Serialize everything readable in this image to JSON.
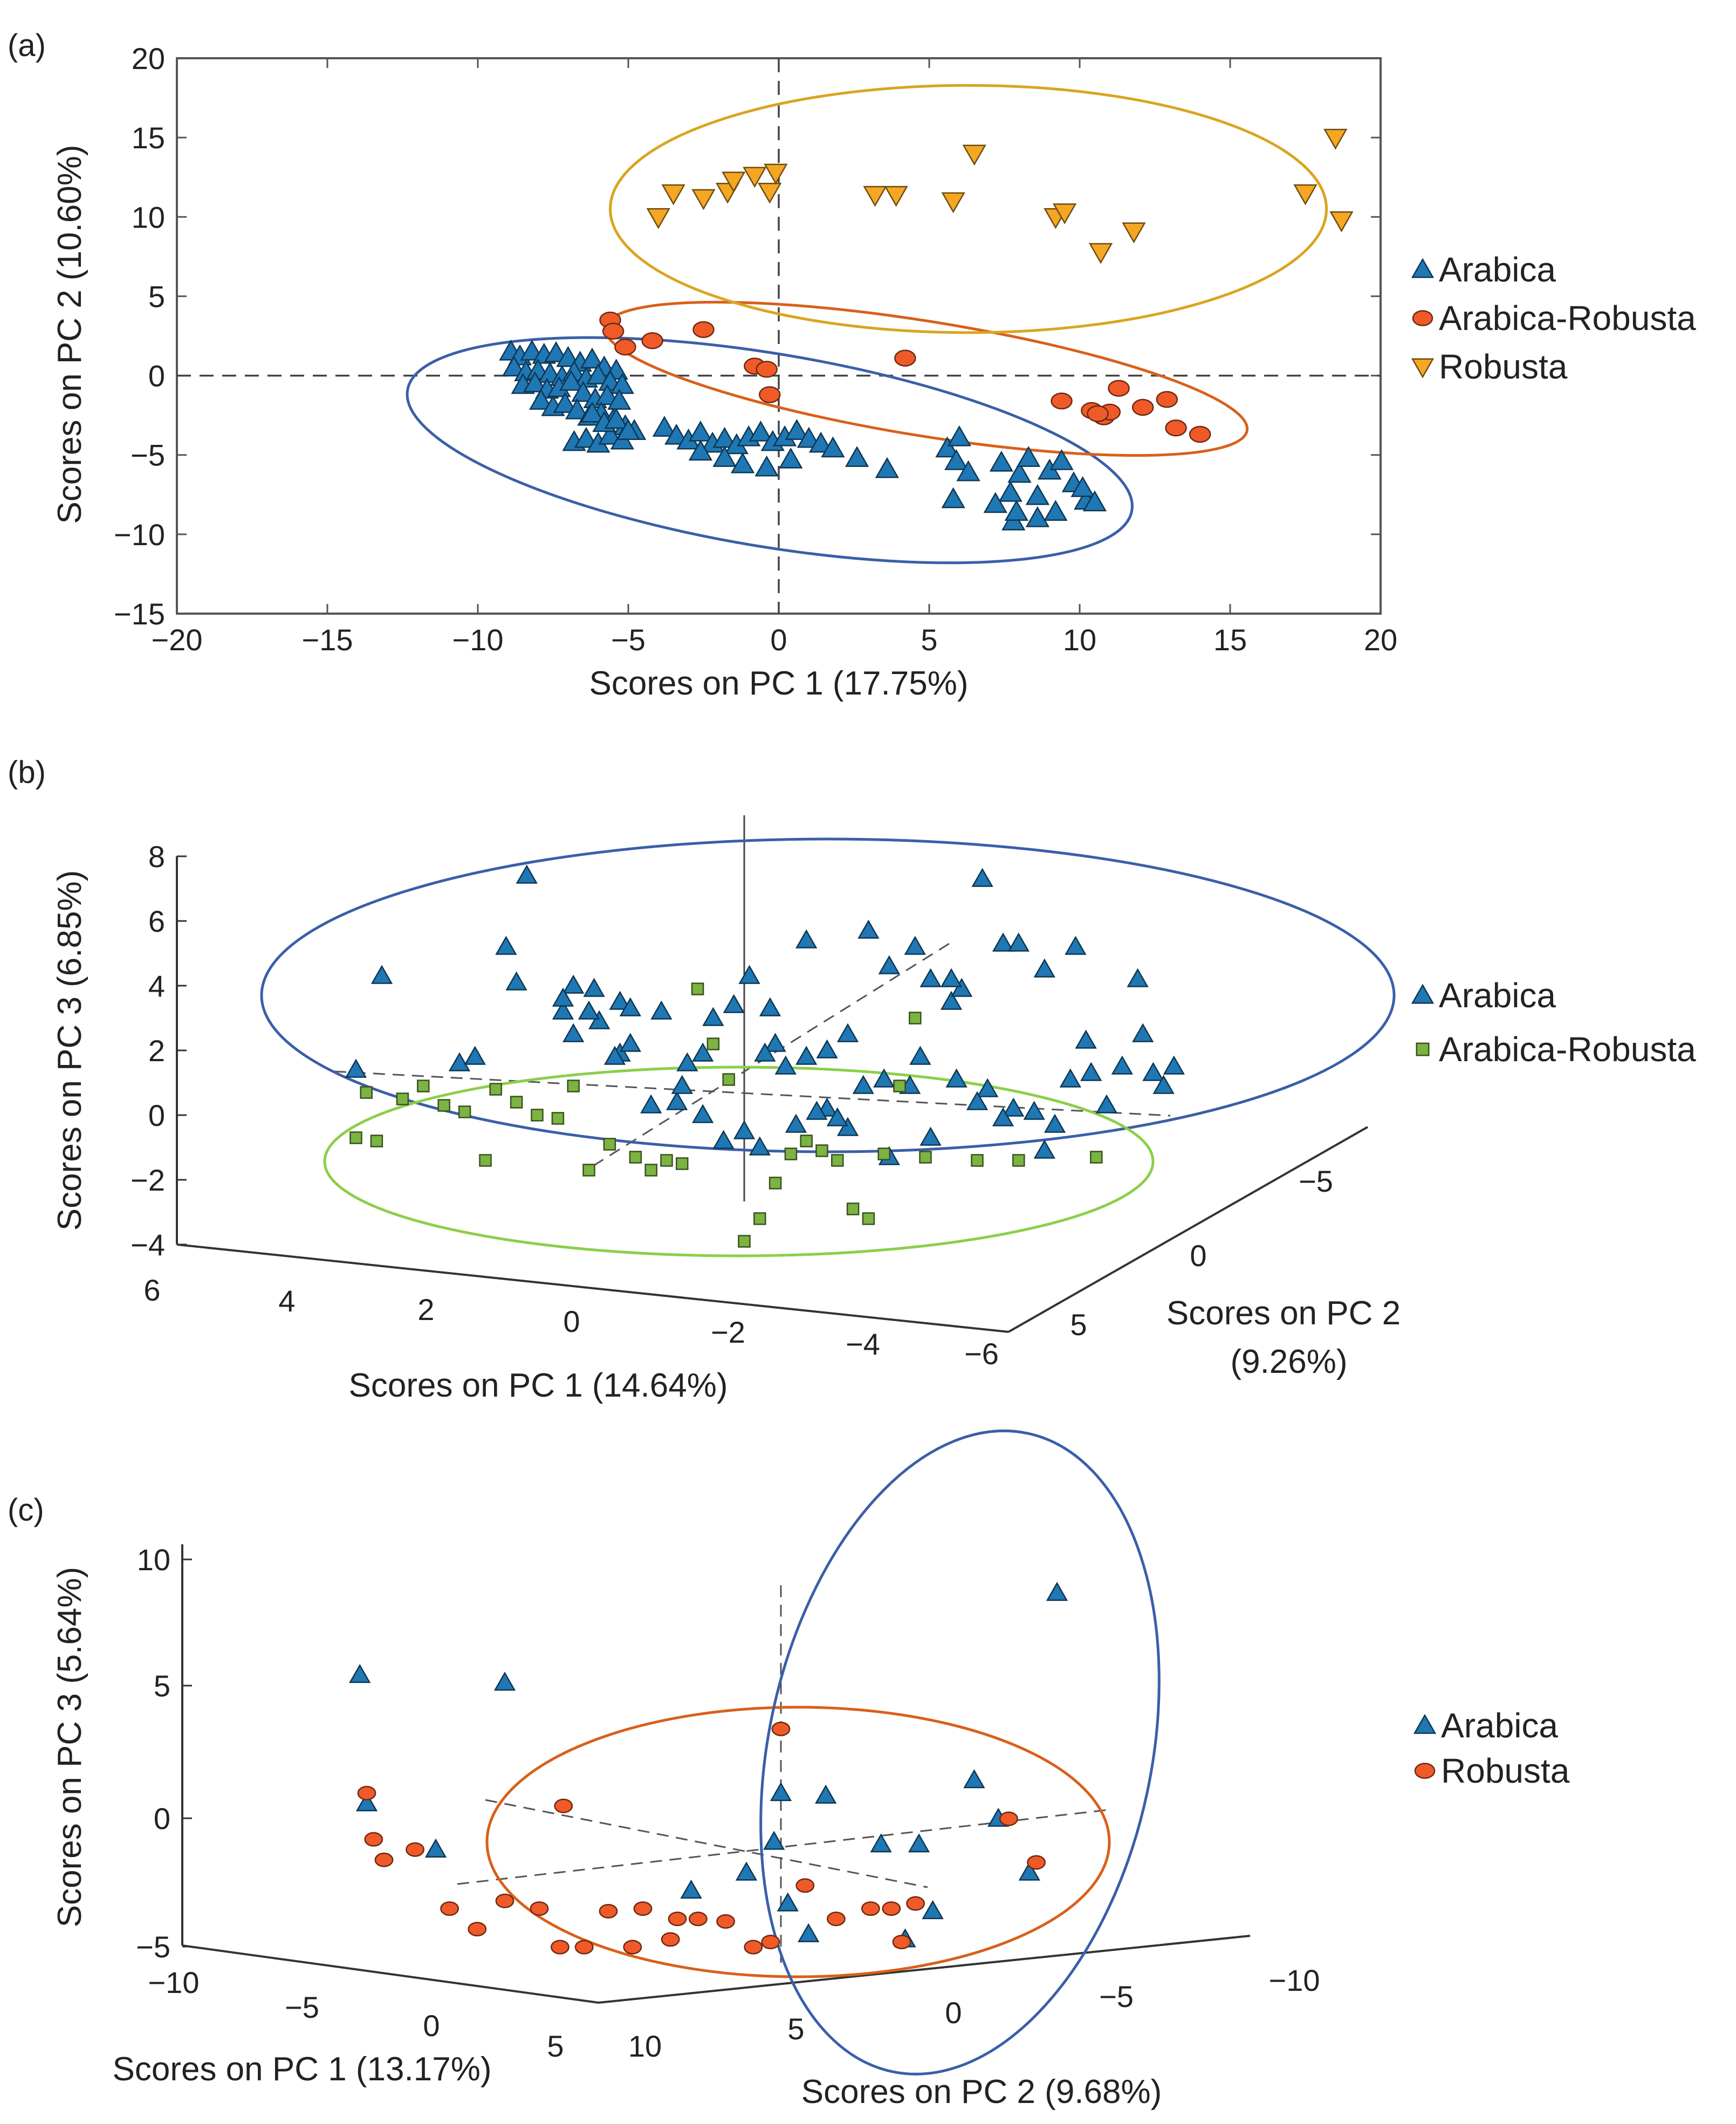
{
  "chart_data": [
    {
      "panel": "(a)",
      "type": "scatter",
      "xlabel": "Scores on PC 1 (17.75%)",
      "ylabel": "Scores on PC 2 (10.60%)",
      "xlim": [
        -20,
        20
      ],
      "ylim": [
        -15,
        20
      ],
      "xticks": [
        "−20",
        "−15",
        "−10",
        "−5",
        "0",
        "5",
        "10",
        "15",
        "20"
      ],
      "yticks": [
        "20",
        "15",
        "10",
        "5",
        "0",
        "−5",
        "−10",
        "−15"
      ],
      "grid": false,
      "legend": "right",
      "zero_lines": "dashed",
      "series": [
        {
          "name": "Arabica",
          "marker": "triangle-up",
          "color": "#1f77b4",
          "x": [
            -8.9,
            -8.6,
            -8.2,
            -7.8,
            -7.4,
            -7.0,
            -6.6,
            -6.2,
            -5.8,
            -5.4,
            -8.8,
            -8.4,
            -8.0,
            -7.6,
            -7.2,
            -6.8,
            -6.4,
            -6.0,
            -5.6,
            -5.2,
            -8.5,
            -8.1,
            -7.7,
            -7.3,
            -6.9,
            -6.5,
            -6.1,
            -5.7,
            -5.3,
            -7.9,
            -7.5,
            -7.1,
            -6.7,
            -6.3,
            -5.9,
            -5.5,
            -5.1,
            -6.8,
            -6.4,
            -6.0,
            -5.6,
            -5.2,
            -4.8,
            -6.2,
            -5.8,
            -5.4,
            -5.0,
            -3.8,
            -3.4,
            -3.0,
            -2.6,
            -2.2,
            -1.8,
            -1.4,
            -1.0,
            -0.6,
            -0.2,
            0.2,
            0.6,
            1.0,
            1.4,
            -2.6,
            -1.8,
            -1.2,
            -0.4,
            0.4,
            1.8,
            2.6,
            3.6,
            5.6,
            5.9,
            6.0,
            6.3,
            5.8,
            7.4,
            7.7,
            8.0,
            8.3,
            8.6,
            9.0,
            9.4,
            9.8,
            10.2,
            7.8,
            8.6,
            9.2,
            10.1,
            10.5,
            7.2,
            7.9
          ],
          "y": [
            1.5,
            1.2,
            1.5,
            1.3,
            1.4,
            1.1,
            0.8,
            1.0,
            0.5,
            0.3,
            0.5,
            0.2,
            0.3,
            0.1,
            -0.1,
            0.2,
            -0.2,
            0.0,
            -0.4,
            -0.6,
            -0.6,
            -0.5,
            -0.9,
            -0.8,
            -0.4,
            -1.1,
            -1.5,
            -1.3,
            -1.6,
            -1.6,
            -2.0,
            -1.8,
            -2.2,
            -2.6,
            -2.4,
            -2.8,
            -3.2,
            -4.2,
            -4.0,
            -4.3,
            -3.8,
            -4.1,
            -3.5,
            -2.4,
            -3.0,
            -2.8,
            -3.5,
            -3.3,
            -3.8,
            -4.1,
            -3.6,
            -4.3,
            -4.0,
            -4.4,
            -3.9,
            -3.6,
            -4.2,
            -3.9,
            -3.5,
            -4.0,
            -4.3,
            -4.8,
            -5.2,
            -5.6,
            -5.8,
            -5.3,
            -4.6,
            -5.2,
            -5.9,
            -4.6,
            -5.4,
            -3.9,
            -6.1,
            -7.8,
            -5.5,
            -7.4,
            -6.2,
            -5.2,
            -7.6,
            -6.0,
            -5.4,
            -6.8,
            -7.9,
            -9.2,
            -9.0,
            -8.6,
            -7.1,
            -8.0,
            -8.1,
            -8.6
          ]
        },
        {
          "name": "Arabica-Robusta",
          "marker": "circle",
          "color": "#f05a28",
          "x": [
            -5.6,
            -5.5,
            -5.1,
            -4.2,
            -2.5,
            -0.8,
            -0.4,
            -0.3,
            4.2,
            9.4,
            10.4,
            10.8,
            11.0,
            11.3,
            12.1,
            12.9,
            13.2,
            14.0,
            10.6
          ],
          "y": [
            3.5,
            2.8,
            1.8,
            2.2,
            2.9,
            0.6,
            0.4,
            -1.2,
            1.1,
            -1.6,
            -2.2,
            -2.6,
            -2.3,
            -0.8,
            -2.0,
            -1.5,
            -3.3,
            -3.7,
            -2.4
          ]
        },
        {
          "name": "Robusta",
          "marker": "triangle-down",
          "color": "#f5a623",
          "x": [
            -4.0,
            -3.5,
            -2.5,
            -1.7,
            -1.5,
            -0.8,
            -0.3,
            -0.1,
            3.2,
            3.9,
            5.8,
            6.5,
            9.2,
            9.5,
            10.7,
            11.8,
            17.5,
            18.5,
            18.7
          ],
          "y": [
            10.0,
            11.5,
            11.2,
            11.6,
            12.3,
            12.6,
            11.6,
            12.8,
            11.4,
            11.4,
            11.0,
            14.0,
            10.0,
            10.3,
            7.8,
            9.1,
            11.5,
            15.0,
            9.8
          ]
        }
      ],
      "ellipses": [
        {
          "group": "Arabica",
          "color": "#3a5fa8",
          "cx": -0.3,
          "cy": -4.7,
          "rx": 12.2,
          "ry": 3.2,
          "angle_deg": -17.5
        },
        {
          "group": "Arabica-Robusta",
          "color": "#d9601a",
          "cx": 4.9,
          "cy": -0.2,
          "rx": 10.8,
          "ry": 1.9,
          "angle_deg": -17
        },
        {
          "group": "Robusta",
          "color": "#d9a520",
          "cx": 6.3,
          "cy": 10.5,
          "rx": 11.9,
          "ry": 4.1,
          "angle_deg": 0
        }
      ]
    },
    {
      "panel": "(b)",
      "type": "scatter",
      "projection": "3d",
      "xlabel": "Scores on PC 1 (14.64%)",
      "ylabel_line1": "Scores on PC 2",
      "ylabel_line2": "(9.26%)",
      "zlabel": "Scores on PC 3 (6.85%)",
      "xticks": [
        "6",
        "4",
        "2",
        "0",
        "−2",
        "−4",
        "−6"
      ],
      "yticks": [
        "−5",
        "0",
        "5"
      ],
      "zticks": [
        "8",
        "6",
        "4",
        "2",
        "0",
        "−2",
        "−4"
      ],
      "zlim": [
        -4,
        8
      ],
      "legend": "right",
      "series": [
        {
          "name": "Arabica",
          "marker": "triangle-up",
          "color": "#1f77b4",
          "proj_x": [
            [
              -7.5,
              -7,
              -4.6,
              -4.4,
              -3.5,
              -3.3,
              -3.3,
              -2.9,
              -2.8,
              -2.4,
              -2.4,
              -2.2,
              -2.2,
              -1.6,
              -1.3,
              -0.8,
              -0.6,
              -0.2,
              0.1,
              0.5,
              0.8,
              1.2,
              1.6,
              2.0,
              2.4,
              2.8,
              3.3,
              3.6,
              4.0,
              4.2,
              4.6,
              5.0,
              5.3,
              5.8,
              6.4,
              6.7,
              7.3,
              7.6,
              7.7,
              7.9,
              8.1,
              8.3,
              -5.5,
              -5.2,
              -4.2,
              -3.5,
              -3.0,
              -2.5,
              -1.8,
              -1.2,
              -0.8,
              0.0,
              0.3,
              0.6,
              1.2,
              1.6,
              2.0,
              2.7,
              3.2,
              3.6,
              4.1,
              4.7,
              5.2,
              5.6,
              6.0,
              6.3,
              6.6,
              7.0,
              -1.1,
              -0.4,
              0.4,
              1.0,
              1.4,
              1.8,
              2.3,
              2.8,
              3.4,
              4.0,
              4.5,
              5.0,
              5.8
            ]
          ],
          "z": [
            1.4,
            4.3,
            5.2,
            4.1,
            3.2,
            4.0,
            2.5,
            3.9,
            2.9,
            3.5,
            1.9,
            3.3,
            2.2,
            3.2,
            0.4,
            1.9,
            3.0,
            3.4,
            4.3,
            3.3,
            1.5,
            1.8,
            2.0,
            2.5,
            5.7,
            4.6,
            5.2,
            4.2,
            3.5,
            3.9,
            7.3,
            5.3,
            5.3,
            4.5,
            5.2,
            1.3,
            1.5,
            4.2,
            2.5,
            1.3,
            0.9,
            1.5,
            1.6,
            1.8,
            7.4,
            3.6,
            3.2,
            1.8,
            0.3,
            0.9,
            0.0,
            -0.5,
            -1.0,
            2.2,
            5.4,
            0.2,
            -0.4,
            1.1,
            0.9,
            -0.7,
            1.1,
            0.8,
            0.2,
            0.1,
            -0.3,
            1.1,
            2.3,
            0.3,
            1.6,
            -0.8,
            1.9,
            -0.3,
            0.1,
            -0.1,
            0.9,
            -1.3,
            1.8,
            4.2,
            0.4,
            -0.1,
            -1.1
          ]
        },
        {
          "name": "Arabica-Robusta",
          "marker": "square",
          "color": "#7cb342",
          "proj_x": [
            [
              -7.5,
              -7.3,
              -7.1,
              -6.6,
              -6.2,
              -5.8,
              -5.4,
              -5.0,
              -4.8,
              -4.4,
              -4.0,
              -3.6,
              -3.3,
              -3.0,
              -2.6,
              -2.1,
              -1.8,
              -1.5,
              -1.2,
              -0.9,
              -0.6,
              -0.3,
              0.0,
              0.3,
              0.6,
              0.9,
              1.2,
              1.5,
              1.8,
              2.1,
              2.4,
              2.7,
              3.0,
              3.3,
              3.5,
              4.5,
              5.3,
              6.8
            ]
          ],
          "z": [
            -0.7,
            0.7,
            -0.8,
            0.5,
            0.9,
            0.3,
            0.1,
            -1.4,
            0.8,
            0.4,
            0.0,
            -0.1,
            0.9,
            -1.7,
            -0.9,
            -1.3,
            -1.7,
            -1.4,
            -1.5,
            3.9,
            2.2,
            1.1,
            -3.9,
            -3.2,
            -2.1,
            -1.2,
            -0.8,
            -1.1,
            -1.4,
            -2.9,
            -3.2,
            -1.2,
            0.9,
            3.0,
            -1.3,
            -1.4,
            -1.4,
            -1.3
          ]
        }
      ],
      "ellipses": [
        {
          "group": "Arabica",
          "color": "#3a5fa8"
        },
        {
          "group": "Arabica-Robusta",
          "color": "#8bcf4a"
        }
      ]
    },
    {
      "panel": "(c)",
      "type": "scatter",
      "projection": "3d",
      "xlabel": "Scores on PC 1 (13.17%)",
      "ylabel": "Scores on PC 2 (9.68%)",
      "zlabel": "Scores on PC 3 (5.64%)",
      "xticks": [
        "−10",
        "−5",
        "0",
        "5"
      ],
      "yticks": [
        "10",
        "5",
        "0",
        "−5",
        "−10"
      ],
      "zticks": [
        "10",
        "5",
        "0",
        "−5"
      ],
      "zlim": [
        -5,
        10
      ],
      "legend": "right",
      "series": [
        {
          "name": "Arabica",
          "marker": "triangle-up",
          "color": "#1f77b4",
          "proj_x": [
            [
              -12.2,
              -8.0,
              -12.0,
              -10.0,
              -2.6,
              -0.2,
              -1.0,
              0.0,
              0.2,
              1.3,
              2.9,
              4.0,
              5.6,
              6.3,
              7.2,
              8.0,
              4.4,
              3.6,
              0.8
            ]
          ],
          "z": [
            6.0,
            5.7,
            1.0,
            -0.8,
            -2.4,
            -0.5,
            -1.7,
            1.4,
            -2.9,
            1.3,
            -0.6,
            -0.6,
            1.9,
            0.4,
            -1.7,
            9.2,
            -3.2,
            -4.3,
            -4.1
          ]
        },
        {
          "name": "Robusta",
          "marker": "circle",
          "color": "#f05a28",
          "proj_x": [
            [
              -12.0,
              -11.8,
              -11.5,
              -10.6,
              -9.6,
              -8.8,
              -8.0,
              -7.0,
              -6.4,
              -5.7,
              -5.0,
              -4.3,
              -4.0,
              -3.2,
              -2.4,
              -1.6,
              -0.8,
              0.0,
              0.7,
              1.6,
              2.6,
              3.2,
              3.5,
              3.9,
              -3.0,
              -6.3,
              -0.3,
              6.6,
              7.4
            ]
          ],
          "z": [
            1.4,
            -0.4,
            -1.2,
            -0.8,
            -3.1,
            -3.9,
            -2.8,
            -3.1,
            -4.6,
            -4.6,
            -3.2,
            -4.6,
            -3.1,
            -4.3,
            -3.5,
            -3.6,
            -4.6,
            3.9,
            -2.2,
            -3.5,
            -3.1,
            -3.1,
            -4.4,
            -2.9,
            -3.5,
            0.9,
            -4.4,
            0.4,
            -1.3
          ]
        }
      ],
      "ellipses": [
        {
          "group": "Arabica",
          "color": "#3a5fa8"
        },
        {
          "group": "Robusta",
          "color": "#d9601a"
        }
      ]
    }
  ]
}
